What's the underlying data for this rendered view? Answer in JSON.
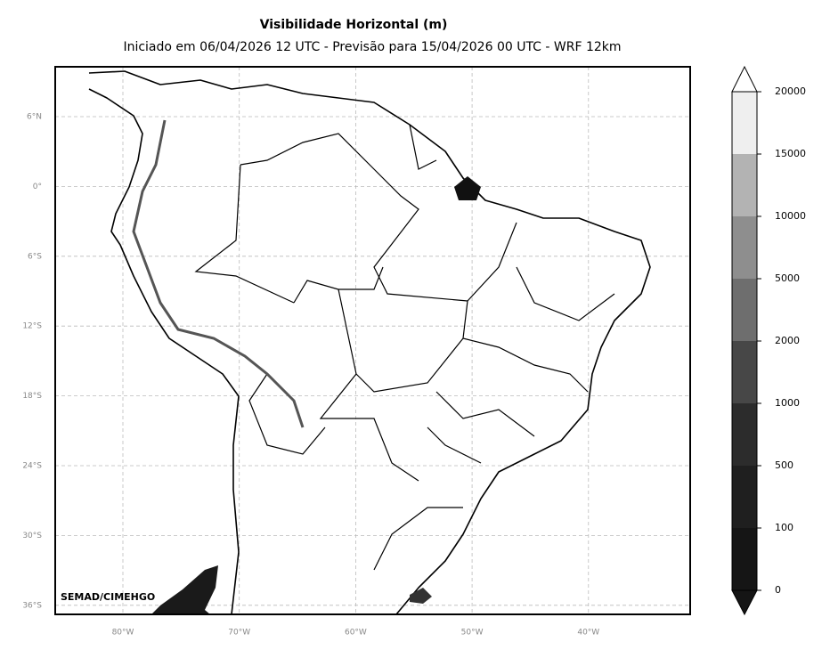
{
  "title": "Visibilidade Horizontal (m)",
  "subtitle": "Iniciado em 06/04/2026 12 UTC - Previsão para 15/04/2026 00 UTC - WRF 12km",
  "map": {
    "lat_labels": [
      "6°N",
      "0°",
      "6°S",
      "12°S",
      "18°S",
      "24°S",
      "30°S",
      "36°S"
    ],
    "lon_labels": [
      "80°W",
      "70°W",
      "60°W",
      "50°W",
      "40°W"
    ],
    "credit": "SEMAD/CIMEHGO"
  },
  "colorbar": {
    "ticks": [
      0,
      100,
      500,
      1000,
      2000,
      5000,
      10000,
      15000,
      20000
    ],
    "colors": [
      "#151515",
      "#1f1f1f",
      "#2c2c2c",
      "#474747",
      "#6e6e6e",
      "#8e8e8e",
      "#b3b3b3",
      "#efefef"
    ]
  }
}
